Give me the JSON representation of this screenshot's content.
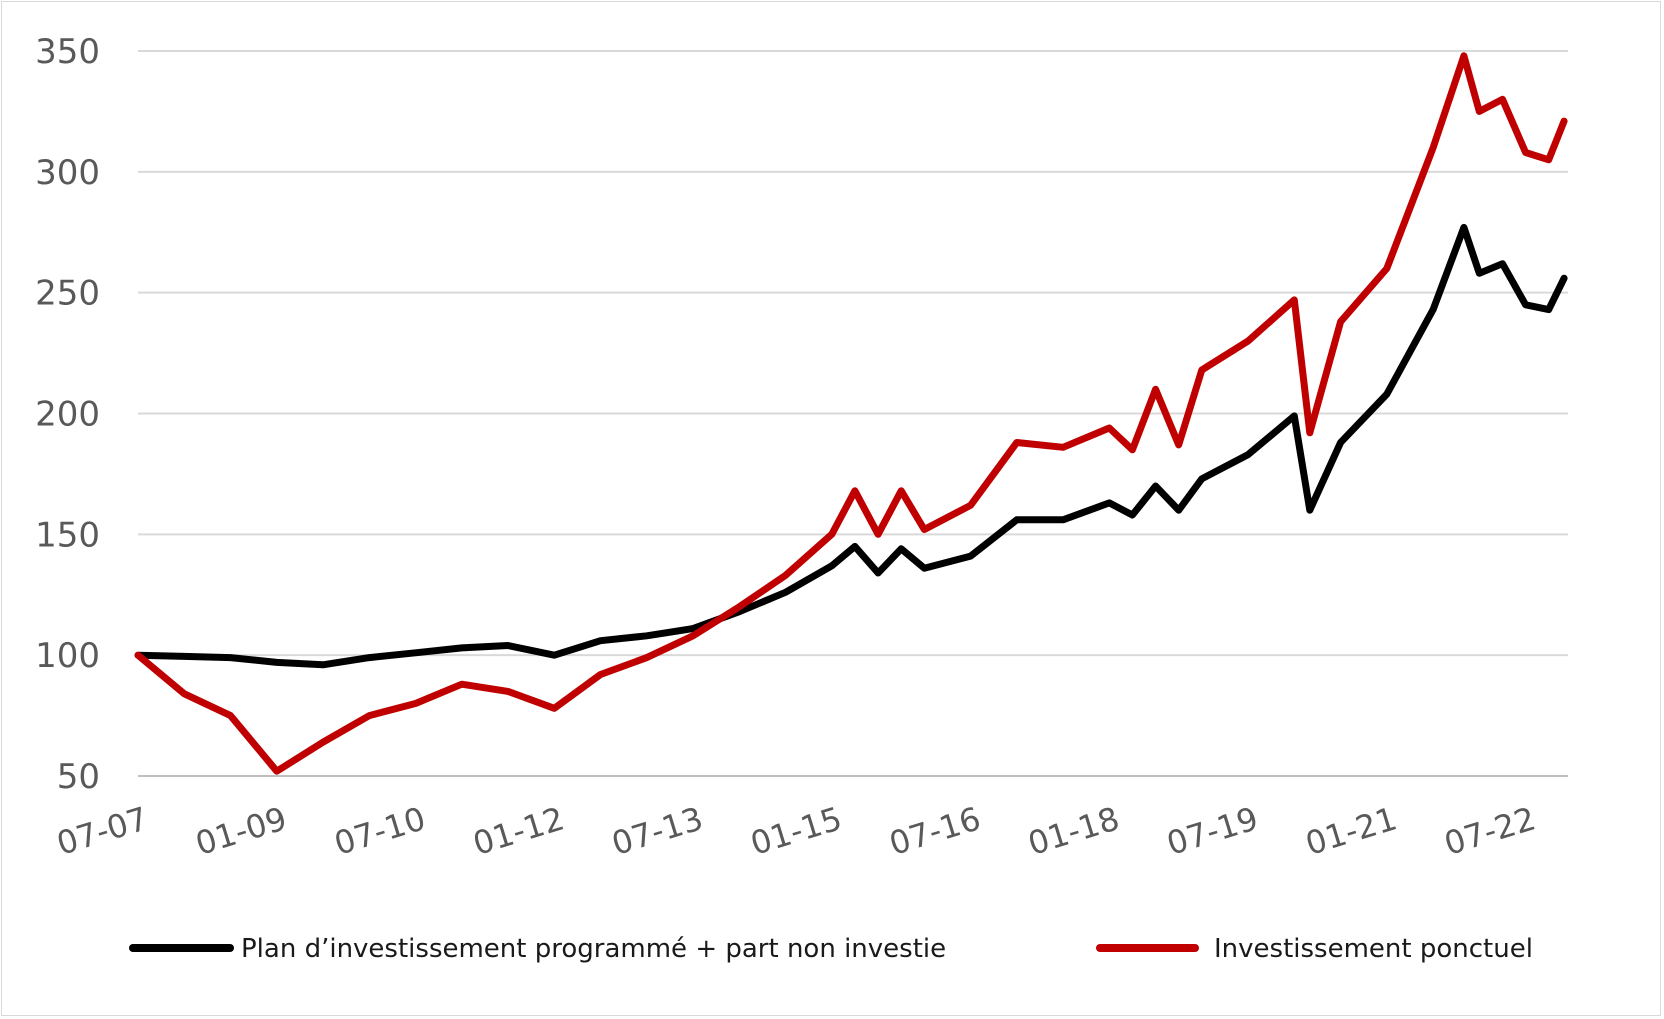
{
  "chart_data": {
    "type": "line",
    "title": "",
    "xlabel": "",
    "ylabel": "",
    "ylim": [
      50,
      350
    ],
    "y_ticks": [
      "50",
      "100",
      "150",
      "200",
      "250",
      "300",
      "350"
    ],
    "x_ticks": [
      "07-07",
      "01-09",
      "07-10",
      "01-12",
      "07-13",
      "01-15",
      "07-16",
      "01-18",
      "07-19",
      "01-21",
      "07-22"
    ],
    "grid": "horizontal",
    "legend_position": "bottom",
    "series": [
      {
        "name": "Plan d’investissement programmé + part non investie",
        "color": "#000000",
        "points": [
          [
            "07-07",
            100
          ],
          [
            "01-08",
            99.5
          ],
          [
            "07-08",
            99
          ],
          [
            "01-09",
            97
          ],
          [
            "07-09",
            96
          ],
          [
            "01-10",
            99
          ],
          [
            "07-10",
            101
          ],
          [
            "01-11",
            103
          ],
          [
            "07-11",
            104
          ],
          [
            "01-12",
            100
          ],
          [
            "07-12",
            106
          ],
          [
            "01-13",
            108
          ],
          [
            "07-13",
            111
          ],
          [
            "01-14",
            118
          ],
          [
            "07-14",
            126
          ],
          [
            "01-15",
            137
          ],
          [
            "04-15",
            145
          ],
          [
            "07-15",
            134
          ],
          [
            "10-15",
            144
          ],
          [
            "01-16",
            136
          ],
          [
            "07-16",
            141
          ],
          [
            "01-17",
            156
          ],
          [
            "07-17",
            156
          ],
          [
            "01-18",
            163
          ],
          [
            "04-18",
            158
          ],
          [
            "07-18",
            170
          ],
          [
            "10-18",
            160
          ],
          [
            "01-19",
            173
          ],
          [
            "07-19",
            183
          ],
          [
            "01-20",
            199
          ],
          [
            "03-20",
            160
          ],
          [
            "07-20",
            188
          ],
          [
            "01-21",
            208
          ],
          [
            "07-21",
            243
          ],
          [
            "11-21",
            277
          ],
          [
            "01-22",
            258
          ],
          [
            "04-22",
            262
          ],
          [
            "07-22",
            245
          ],
          [
            "10-22",
            243
          ],
          [
            "12-22",
            256
          ]
        ]
      },
      {
        "name": "Investissement ponctuel",
        "color": "#c00000",
        "points": [
          [
            "07-07",
            100
          ],
          [
            "01-08",
            84
          ],
          [
            "07-08",
            75
          ],
          [
            "01-09",
            52
          ],
          [
            "07-09",
            64
          ],
          [
            "01-10",
            75
          ],
          [
            "07-10",
            80
          ],
          [
            "01-11",
            88
          ],
          [
            "07-11",
            85
          ],
          [
            "01-12",
            78
          ],
          [
            "07-12",
            92
          ],
          [
            "01-13",
            99
          ],
          [
            "07-13",
            108
          ],
          [
            "01-14",
            120
          ],
          [
            "07-14",
            133
          ],
          [
            "01-15",
            150
          ],
          [
            "04-15",
            168
          ],
          [
            "07-15",
            150
          ],
          [
            "10-15",
            168
          ],
          [
            "01-16",
            152
          ],
          [
            "07-16",
            162
          ],
          [
            "01-17",
            188
          ],
          [
            "07-17",
            186
          ],
          [
            "01-18",
            194
          ],
          [
            "04-18",
            185
          ],
          [
            "07-18",
            210
          ],
          [
            "10-18",
            187
          ],
          [
            "01-19",
            218
          ],
          [
            "07-19",
            230
          ],
          [
            "01-20",
            247
          ],
          [
            "03-20",
            192
          ],
          [
            "07-20",
            238
          ],
          [
            "01-21",
            260
          ],
          [
            "07-21",
            310
          ],
          [
            "11-21",
            348
          ],
          [
            "01-22",
            325
          ],
          [
            "04-22",
            330
          ],
          [
            "07-22",
            308
          ],
          [
            "10-22",
            305
          ],
          [
            "12-22",
            321
          ]
        ]
      }
    ]
  }
}
